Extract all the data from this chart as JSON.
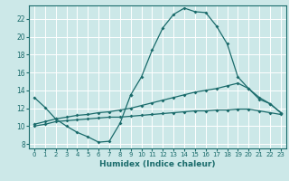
{
  "xlabel": "Humidex (Indice chaleur)",
  "xlim": [
    -0.5,
    23.5
  ],
  "ylim": [
    7.5,
    23.5
  ],
  "xticks": [
    0,
    1,
    2,
    3,
    4,
    5,
    6,
    7,
    8,
    9,
    10,
    11,
    12,
    13,
    14,
    15,
    16,
    17,
    18,
    19,
    20,
    21,
    22,
    23
  ],
  "yticks": [
    8,
    10,
    12,
    14,
    16,
    18,
    20,
    22
  ],
  "bg_color": "#cce8e8",
  "grid_color": "#ffffff",
  "line_color": "#1a6b6b",
  "line1_x": [
    0,
    1,
    2,
    3,
    4,
    5,
    6,
    7,
    8,
    9
  ],
  "line1_y": [
    13.2,
    12.1,
    10.8,
    10.0,
    9.3,
    8.8,
    8.2,
    8.3,
    10.3,
    13.5
  ],
  "line2_x": [
    0,
    1,
    2,
    3,
    4,
    5,
    6,
    7,
    8,
    9,
    10,
    11,
    12,
    13,
    14,
    15,
    16,
    17,
    18,
    19,
    20,
    21,
    22,
    23
  ],
  "line2_y": [
    10.2,
    10.5,
    10.8,
    11.0,
    11.2,
    11.3,
    11.5,
    11.6,
    11.8,
    12.0,
    12.3,
    12.6,
    12.9,
    13.2,
    13.5,
    13.8,
    14.0,
    14.2,
    14.5,
    14.8,
    14.2,
    13.2,
    12.5,
    11.5
  ],
  "line3_x": [
    0,
    1,
    2,
    3,
    4,
    5,
    6,
    7,
    8,
    9,
    10,
    11,
    12,
    13,
    14,
    15,
    16,
    17,
    18,
    19,
    20,
    21,
    22,
    23
  ],
  "line3_y": [
    10.0,
    10.2,
    10.5,
    10.6,
    10.7,
    10.8,
    10.9,
    11.0,
    11.0,
    11.1,
    11.2,
    11.3,
    11.4,
    11.5,
    11.6,
    11.7,
    11.7,
    11.8,
    11.8,
    11.9,
    11.9,
    11.7,
    11.5,
    11.3
  ],
  "line4_x": [
    9,
    10,
    11,
    12,
    13,
    14,
    15,
    16,
    17,
    18,
    19,
    20,
    21,
    22,
    23
  ],
  "line4_y": [
    13.5,
    15.5,
    18.5,
    21.0,
    22.5,
    23.2,
    22.8,
    22.7,
    21.2,
    19.2,
    15.5,
    14.2,
    13.0,
    12.5,
    11.5
  ]
}
